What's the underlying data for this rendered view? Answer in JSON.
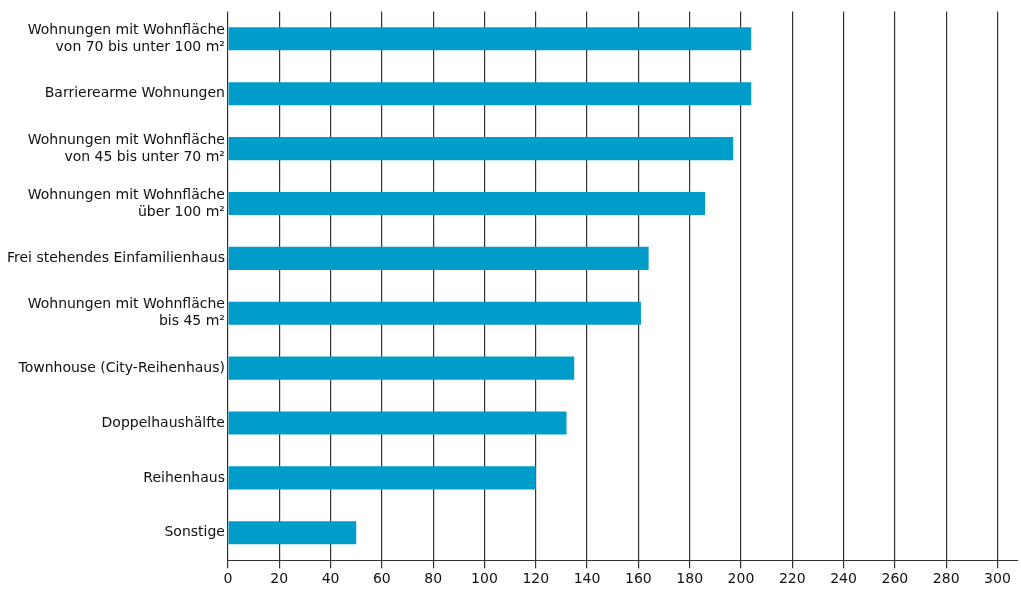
{
  "chart_data": {
    "type": "bar",
    "orientation": "horizontal",
    "categories": [
      "Wohnungen mit Wohnfläche\nvon 70 bis unter 100 m²",
      "Barrierearme Wohnungen",
      "Wohnungen mit Wohnfläche\nvon 45 bis unter 70 m²",
      "Wohnungen mit Wohnfläche\nüber 100 m²",
      "Frei stehendes Einfamilienhaus",
      "Wohnungen mit Wohnfläche\nbis 45 m²",
      "Townhouse (City-Reihenhaus)",
      "Doppelhaushälfte",
      "Reihenhaus",
      "Sonstige"
    ],
    "values": [
      204,
      204,
      197,
      186,
      164,
      161,
      135,
      132,
      120,
      50
    ],
    "color": "#009dcb",
    "xlim": [
      0,
      308
    ],
    "xticks": [
      0,
      20,
      40,
      60,
      80,
      100,
      120,
      140,
      160,
      180,
      200,
      220,
      240,
      260,
      280,
      300
    ],
    "grid": "x",
    "legend": false
  }
}
